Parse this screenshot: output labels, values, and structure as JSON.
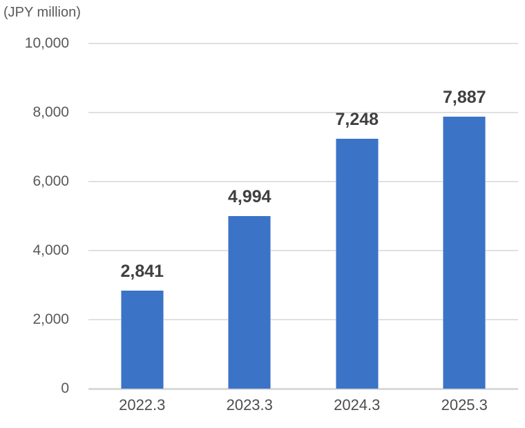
{
  "chart": {
    "unit_label": "(JPY million)"
  },
  "chart_data": {
    "type": "bar",
    "categories": [
      "2022.3",
      "2023.3",
      "2024.3",
      "2025.3"
    ],
    "values": [
      2841,
      4994,
      7248,
      7887
    ],
    "value_labels": [
      "2,841",
      "4,994",
      "7,248",
      "7,887"
    ],
    "title": "",
    "xlabel": "",
    "ylabel": "(JPY million)",
    "ylim": [
      0,
      10000
    ],
    "yticks": [
      0,
      2000,
      4000,
      6000,
      8000,
      10000
    ],
    "ytick_labels": [
      "0",
      "2,000",
      "4,000",
      "6,000",
      "8,000",
      "10,000"
    ],
    "grid": true,
    "legend": false,
    "colors": {
      "bar": "#3B73C7",
      "gridline": "#E0E0E0",
      "axis_line": "#D9D9D9",
      "tick_text": "#595959",
      "x_tick_text": "#4D4D4D",
      "data_label_text": "#404040"
    }
  }
}
